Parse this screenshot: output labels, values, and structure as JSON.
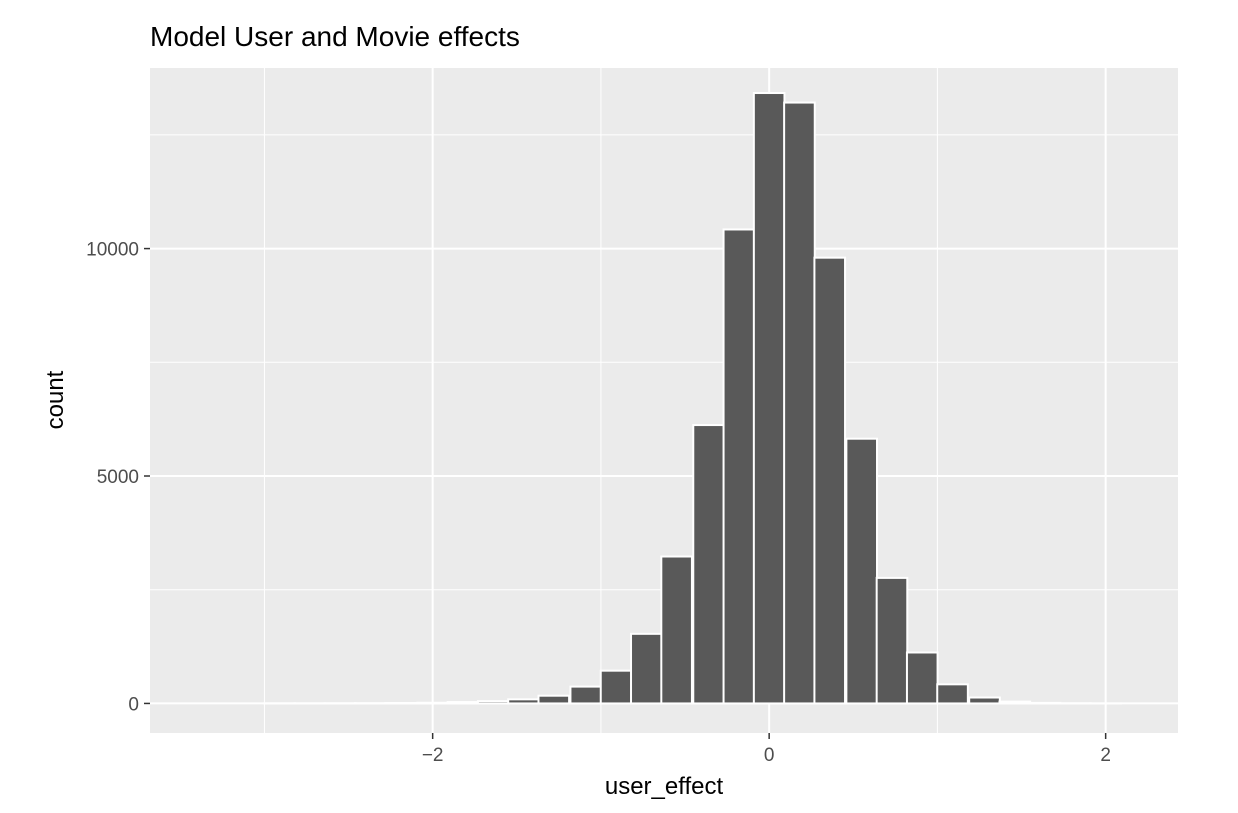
{
  "chart_data": {
    "type": "bar",
    "title": "Model User and Movie effects",
    "xlabel": "user_effect",
    "ylabel": "count",
    "xlim": [
      -3.68,
      2.43
    ],
    "ylim": [
      -650,
      13970
    ],
    "x_ticks": [
      {
        "value": -2,
        "label": "−2"
      },
      {
        "value": 0,
        "label": "0"
      },
      {
        "value": 2,
        "label": "2"
      }
    ],
    "y_ticks": [
      {
        "value": 0,
        "label": "0"
      },
      {
        "value": 5000,
        "label": "5000"
      },
      {
        "value": 10000,
        "label": "10000"
      }
    ],
    "y_minor": [
      2500,
      7500,
      12500
    ],
    "x_minor": [
      -3,
      -1,
      1
    ],
    "grid": true,
    "legend": "none",
    "bin_width": 0.182,
    "bins": [
      {
        "x": -3.46,
        "count": 0
      },
      {
        "x": -3.28,
        "count": 0
      },
      {
        "x": -3.1,
        "count": 0
      },
      {
        "x": -2.91,
        "count": 2
      },
      {
        "x": -2.73,
        "count": 3
      },
      {
        "x": -2.55,
        "count": 4
      },
      {
        "x": -2.37,
        "count": 6
      },
      {
        "x": -2.19,
        "count": 10
      },
      {
        "x": -2.0,
        "count": 15
      },
      {
        "x": -1.82,
        "count": 30
      },
      {
        "x": -1.64,
        "count": 50
      },
      {
        "x": -1.46,
        "count": 90
      },
      {
        "x": -1.28,
        "count": 170
      },
      {
        "x": -1.09,
        "count": 370
      },
      {
        "x": -0.91,
        "count": 720
      },
      {
        "x": -0.73,
        "count": 1530
      },
      {
        "x": -0.55,
        "count": 3230
      },
      {
        "x": -0.36,
        "count": 6120
      },
      {
        "x": -0.18,
        "count": 10420
      },
      {
        "x": 0.0,
        "count": 13420
      },
      {
        "x": 0.18,
        "count": 13210
      },
      {
        "x": 0.36,
        "count": 9800
      },
      {
        "x": 0.55,
        "count": 5820
      },
      {
        "x": 0.73,
        "count": 2760
      },
      {
        "x": 0.91,
        "count": 1120
      },
      {
        "x": 1.09,
        "count": 420
      },
      {
        "x": 1.28,
        "count": 130
      },
      {
        "x": 1.46,
        "count": 40
      },
      {
        "x": 1.64,
        "count": 12
      },
      {
        "x": 1.82,
        "count": 4
      },
      {
        "x": 2.0,
        "count": 1
      },
      {
        "x": 2.19,
        "count": 0
      }
    ],
    "colors": {
      "panel": "#ebebeb",
      "grid_major": "#ffffff",
      "bar_fill": "#595959",
      "bar_outline": "#ffffff",
      "tick": "#333333"
    }
  }
}
